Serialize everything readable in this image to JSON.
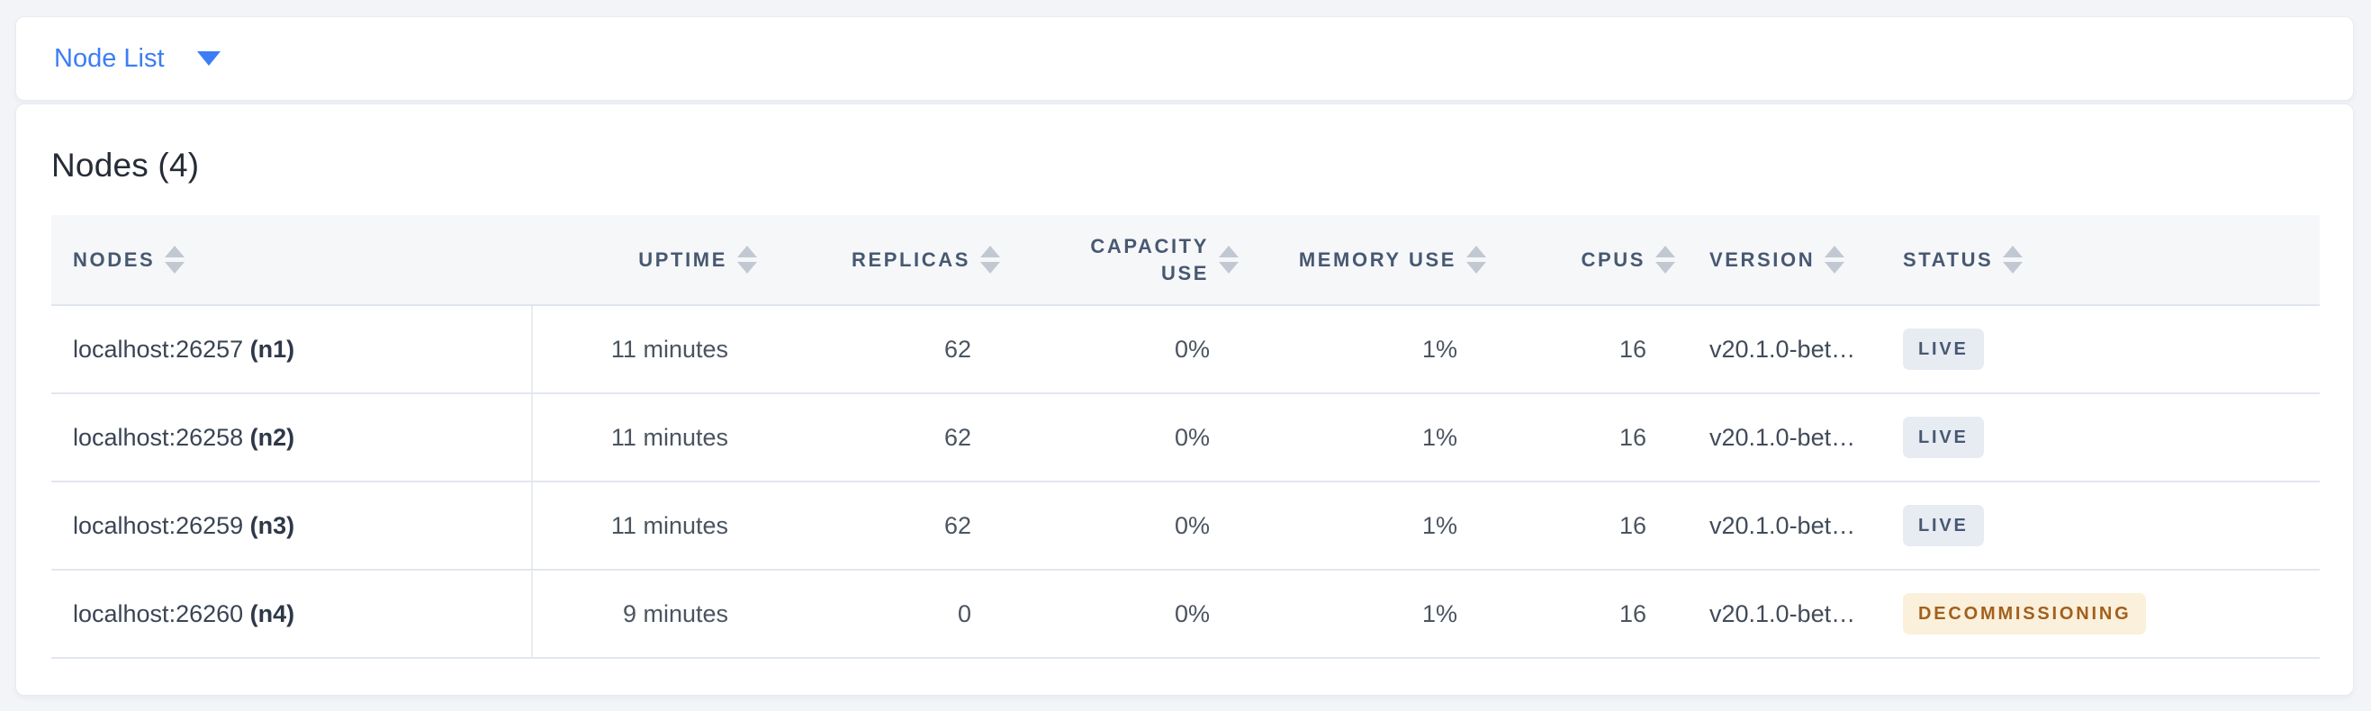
{
  "nav": {
    "dropdown_label": "Node List",
    "caret_icon": "caret-down-icon"
  },
  "main": {
    "heading": "Nodes (4)"
  },
  "table": {
    "columns": [
      {
        "key": "nodes",
        "label": "NODES",
        "align": "left",
        "sortable": true,
        "sort_icon": "sort-icon"
      },
      {
        "key": "uptime",
        "label": "UPTIME",
        "align": "right",
        "sortable": true,
        "sort_icon": "sort-icon"
      },
      {
        "key": "replicas",
        "label": "REPLICAS",
        "align": "right",
        "sortable": true,
        "sort_icon": "sort-icon"
      },
      {
        "key": "capacity_use",
        "label": "CAPACITY USE",
        "align": "right",
        "sortable": true,
        "sort_icon": "sort-icon"
      },
      {
        "key": "memory_use",
        "label": "MEMORY USE",
        "align": "right",
        "sortable": true,
        "sort_icon": "sort-icon"
      },
      {
        "key": "cpus",
        "label": "CPUS",
        "align": "right",
        "sortable": true,
        "sort_icon": "sort-icon"
      },
      {
        "key": "version",
        "label": "VERSION",
        "align": "left",
        "sortable": true,
        "sort_icon": "sort-icon"
      },
      {
        "key": "status",
        "label": "STATUS",
        "align": "left",
        "sortable": true,
        "sort_icon": "sort-icon"
      }
    ],
    "rows": [
      {
        "address": "localhost:26257",
        "node_id": "(n1)",
        "uptime": "11 minutes",
        "replicas": "62",
        "capacity_use": "0%",
        "memory_use": "1%",
        "cpus": "16",
        "version": "v20.1.0-bet…",
        "status": "LIVE",
        "status_type": "live"
      },
      {
        "address": "localhost:26258",
        "node_id": "(n2)",
        "uptime": "11 minutes",
        "replicas": "62",
        "capacity_use": "0%",
        "memory_use": "1%",
        "cpus": "16",
        "version": "v20.1.0-bet…",
        "status": "LIVE",
        "status_type": "live"
      },
      {
        "address": "localhost:26259",
        "node_id": "(n3)",
        "uptime": "11 minutes",
        "replicas": "62",
        "capacity_use": "0%",
        "memory_use": "1%",
        "cpus": "16",
        "version": "v20.1.0-bet…",
        "status": "LIVE",
        "status_type": "live"
      },
      {
        "address": "localhost:26260",
        "node_id": "(n4)",
        "uptime": "9 minutes",
        "replicas": "0",
        "capacity_use": "0%",
        "memory_use": "1%",
        "cpus": "16",
        "version": "v20.1.0-bet…",
        "status": "DECOMMISSIONING",
        "status_type": "decommissioning"
      }
    ]
  },
  "colors": {
    "accent_blue": "#3c7df7",
    "header_text": "#475872",
    "live_badge_bg": "#e7ebf2",
    "live_badge_text": "#475872",
    "decommissioning_badge_bg": "#faf0dc",
    "decommissioning_badge_text": "#a2601c"
  }
}
